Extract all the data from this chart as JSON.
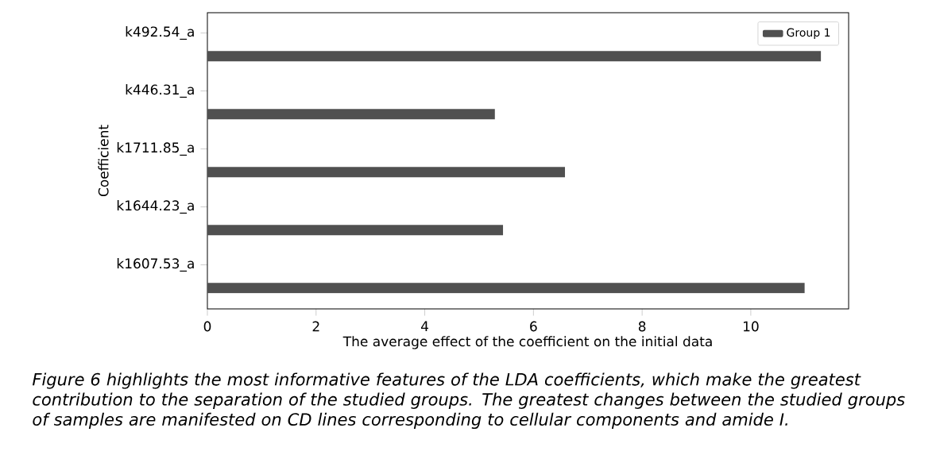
{
  "chart_data": {
    "type": "bar",
    "orientation": "horizontal",
    "xlabel": "The average effect of the coefficient on the initial data",
    "ylabel": "Coefficient",
    "categories": [
      "k492.54_a",
      "k446.31_a",
      "k1711.85_a",
      "k1644.23_a",
      "k1607.53_a"
    ],
    "series": [
      {
        "name": "Group 1",
        "color": "#505050",
        "values": [
          11.29,
          5.29,
          6.58,
          5.44,
          10.99
        ]
      }
    ],
    "xlim": [
      0,
      11.8
    ],
    "xticks": [
      0,
      2,
      4,
      6,
      8,
      10
    ],
    "legend": "top right",
    "annotations": [
      "*Figure 6 highlights the most informative features of the LDA coefficients, which make the greatest contribution to the separation of the studied groups. The greatest changes between the studied groups of samples are manifested on CD lines corresponding to cellular components and amide I.*"
    ]
  }
}
